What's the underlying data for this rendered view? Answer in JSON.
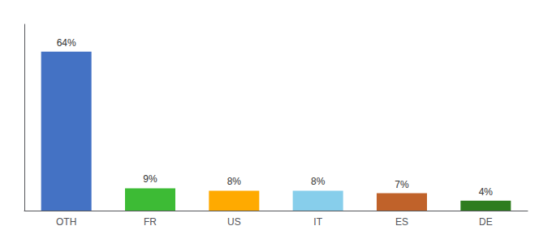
{
  "chart_data": {
    "type": "bar",
    "categories": [
      "OTH",
      "FR",
      "US",
      "IT",
      "ES",
      "DE"
    ],
    "values": [
      64,
      9,
      8,
      8,
      7,
      4
    ],
    "value_labels": [
      "64%",
      "9%",
      "8%",
      "8%",
      "7%",
      "4%"
    ],
    "colors": [
      "#4472c4",
      "#3dbb35",
      "#ffaa00",
      "#87ceeb",
      "#c0622a",
      "#2e7d1e"
    ],
    "ylim": [
      0,
      75
    ],
    "data_labels": true,
    "tick_labels": "x",
    "grid": false
  }
}
